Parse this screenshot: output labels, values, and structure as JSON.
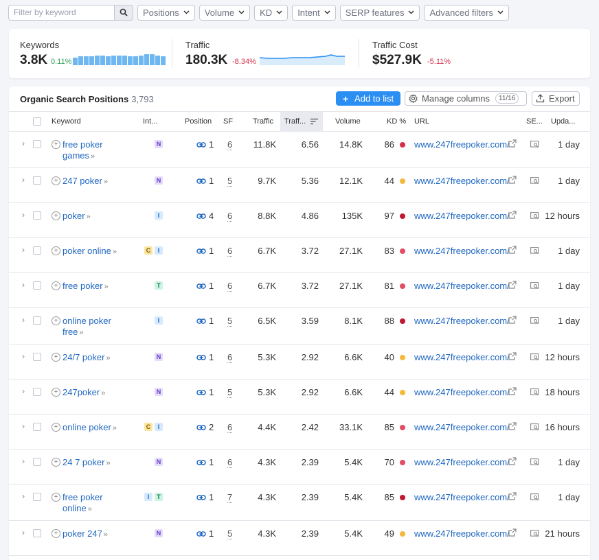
{
  "filters": {
    "search_placeholder": "Filter by keyword",
    "dropdowns": [
      "Positions",
      "Volume",
      "KD",
      "Intent",
      "SERP features",
      "Advanced filters"
    ]
  },
  "summary": {
    "keywords": {
      "label": "Keywords",
      "value": "3.8K",
      "delta": "0.11%",
      "delta_color": "#2e9e57"
    },
    "traffic": {
      "label": "Traffic",
      "value": "180.3K",
      "delta": "-8.34%",
      "delta_color": "#d5304a"
    },
    "traffic_cost": {
      "label": "Traffic Cost",
      "value": "$527.9K",
      "delta": "-5.11%",
      "delta_color": "#d5304a"
    }
  },
  "table": {
    "title": "Organic Search Positions",
    "count": "3,793",
    "add_button": "Add to list",
    "manage_button": "Manage columns",
    "manage_count": "11/16",
    "export_button": "Export",
    "columns": {
      "keyword": "Keyword",
      "intent": "Int...",
      "position": "Position",
      "sf": "SF",
      "traffic": "Traffic",
      "traffic_pct": "Traff...",
      "volume": "Volume",
      "kd": "KD %",
      "url": "URL",
      "serp": "SE...",
      "updated": "Upda..."
    },
    "rows": [
      {
        "kw": "free poker games",
        "intents": [
          "N"
        ],
        "pos": "1",
        "sf": "6",
        "traffic": "11.8K",
        "pct": "6.56",
        "volume": "14.8K",
        "kd": "86",
        "kd_color": "#d5304a",
        "url": "www.247freepoker.com/",
        "updated": "1 day"
      },
      {
        "kw": "247 poker",
        "intents": [
          "N"
        ],
        "pos": "1",
        "sf": "5",
        "traffic": "9.7K",
        "pct": "5.36",
        "volume": "12.1K",
        "kd": "44",
        "kd_color": "#f5b83b",
        "url": "www.247freepoker.com/",
        "updated": "1 day"
      },
      {
        "kw": "poker",
        "intents": [
          "I"
        ],
        "pos": "4",
        "sf": "6",
        "traffic": "8.8K",
        "pct": "4.86",
        "volume": "135K",
        "kd": "97",
        "kd_color": "#c0182f",
        "url": "www.247freepoker.com/",
        "updated": "12 hours"
      },
      {
        "kw": "poker online",
        "intents": [
          "C",
          "I"
        ],
        "pos": "1",
        "sf": "6",
        "traffic": "6.7K",
        "pct": "3.72",
        "volume": "27.1K",
        "kd": "83",
        "kd_color": "#e24d64",
        "url": "www.247freepoker.com/",
        "updated": "1 day"
      },
      {
        "kw": "free poker",
        "intents": [
          "T"
        ],
        "pos": "1",
        "sf": "6",
        "traffic": "6.7K",
        "pct": "3.72",
        "volume": "27.1K",
        "kd": "81",
        "kd_color": "#e24d64",
        "url": "www.247freepoker.com/",
        "updated": "1 day"
      },
      {
        "kw": "online poker free",
        "intents": [
          "I"
        ],
        "pos": "1",
        "sf": "5",
        "traffic": "6.5K",
        "pct": "3.59",
        "volume": "8.1K",
        "kd": "88",
        "kd_color": "#c0182f",
        "url": "www.247freepoker.com/",
        "updated": "1 day"
      },
      {
        "kw": "24/7 poker",
        "intents": [
          "N"
        ],
        "pos": "1",
        "sf": "6",
        "traffic": "5.3K",
        "pct": "2.92",
        "volume": "6.6K",
        "kd": "40",
        "kd_color": "#f5b83b",
        "url": "www.247freepoker.com/",
        "updated": "12 hours"
      },
      {
        "kw": "247poker",
        "intents": [
          "N"
        ],
        "pos": "1",
        "sf": "5",
        "traffic": "5.3K",
        "pct": "2.92",
        "volume": "6.6K",
        "kd": "44",
        "kd_color": "#f5b83b",
        "url": "www.247freepoker.com/",
        "updated": "18 hours"
      },
      {
        "kw": "online poker",
        "intents": [
          "C",
          "I"
        ],
        "pos": "2",
        "sf": "6",
        "traffic": "4.4K",
        "pct": "2.42",
        "volume": "33.1K",
        "kd": "85",
        "kd_color": "#e24d64",
        "url": "www.247freepoker.com/",
        "updated": "16 hours"
      },
      {
        "kw": "24 7 poker",
        "intents": [
          "N"
        ],
        "pos": "1",
        "sf": "6",
        "traffic": "4.3K",
        "pct": "2.39",
        "volume": "5.4K",
        "kd": "70",
        "kd_color": "#e24d64",
        "url": "www.247freepoker.com/",
        "updated": "1 day"
      },
      {
        "kw": "free poker online",
        "intents": [
          "I",
          "T"
        ],
        "pos": "1",
        "sf": "7",
        "traffic": "4.3K",
        "pct": "2.39",
        "volume": "5.4K",
        "kd": "85",
        "kd_color": "#c0182f",
        "url": "www.247freepoker.com/",
        "updated": "1 day"
      },
      {
        "kw": "poker 247",
        "intents": [
          "N"
        ],
        "pos": "1",
        "sf": "5",
        "traffic": "4.3K",
        "pct": "2.39",
        "volume": "5.4K",
        "kd": "49",
        "kd_color": "#f5b83b",
        "url": "www.247freepoker.com/",
        "updated": "21 hours"
      }
    ]
  },
  "colors": {
    "accent": "#2b8ef3",
    "link": "#1f67c1",
    "spark_bar": "#6eb7f0",
    "spark_line": "#2b8ef3"
  },
  "icons": {
    "search": "search-icon",
    "chevron": "chevron-down-icon",
    "link": "link-icon",
    "external": "external-link-icon",
    "serp": "serp-snapshot-icon",
    "gear": "gear-icon",
    "export": "export-icon",
    "sort": "sort-icon"
  }
}
